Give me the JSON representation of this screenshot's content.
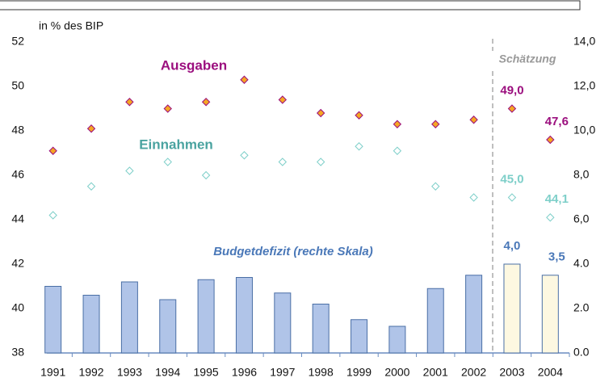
{
  "chart_data": {
    "type": "combo",
    "y_label": "in % des BIP",
    "annotation": "Schätzung",
    "categories": [
      "1991",
      "1992",
      "1993",
      "1994",
      "1995",
      "1996",
      "1997",
      "1998",
      "1999",
      "2000",
      "2001",
      "2002",
      "2003",
      "2004"
    ],
    "series": [
      {
        "name": "Ausgaben",
        "type": "line",
        "color": "#9b0e7e",
        "marker_color": "#f5a623",
        "values": [
          47.1,
          48.1,
          49.3,
          49.0,
          49.3,
          50.3,
          49.4,
          48.8,
          48.7,
          48.3,
          48.3,
          48.5,
          49.0,
          47.6
        ],
        "value_labels": [
          null,
          null,
          null,
          null,
          null,
          null,
          null,
          null,
          null,
          null,
          null,
          null,
          "49,0",
          "47,6"
        ]
      },
      {
        "name": "Einnahmen",
        "type": "line",
        "color": "#7ecfc9",
        "marker_color": "#ffffff",
        "values": [
          44.2,
          45.5,
          46.2,
          46.6,
          46.0,
          46.9,
          46.6,
          46.6,
          47.3,
          47.1,
          45.5,
          45.0,
          45.0,
          44.1
        ],
        "value_labels": [
          null,
          null,
          null,
          null,
          null,
          null,
          null,
          null,
          null,
          null,
          null,
          null,
          "45,0",
          "44,1"
        ]
      },
      {
        "name": "Budgetdefizit (rechte Skala)",
        "type": "bar",
        "axis": "y2",
        "color": "#4a78b8",
        "colors": [
          "#b0c4e8",
          "#b0c4e8",
          "#b0c4e8",
          "#b0c4e8",
          "#b0c4e8",
          "#b0c4e8",
          "#b0c4e8",
          "#b0c4e8",
          "#b0c4e8",
          "#b0c4e8",
          "#b0c4e8",
          "#b0c4e8",
          "#fdf8e1",
          "#fdf8e1"
        ],
        "values": [
          3.0,
          2.6,
          3.2,
          2.4,
          3.3,
          3.4,
          2.7,
          2.2,
          1.5,
          1.2,
          2.9,
          3.5,
          4.0,
          3.5
        ],
        "value_labels": [
          null,
          null,
          null,
          null,
          null,
          null,
          null,
          null,
          null,
          null,
          null,
          null,
          "4,0",
          "3,5"
        ]
      }
    ],
    "ylim": [
      38,
      52
    ],
    "yticks": [
      38,
      40,
      42,
      44,
      46,
      48,
      50,
      52
    ],
    "y2lim": [
      0,
      14
    ],
    "y2ticks": [
      {
        "value": 0,
        "label": "0.0"
      },
      {
        "value": 2,
        "label": "2.0"
      },
      {
        "value": 4,
        "label": "4.0"
      },
      {
        "value": 6,
        "label": "6,0"
      },
      {
        "value": 8,
        "label": "8,0"
      },
      {
        "value": 10,
        "label": "10,0"
      },
      {
        "value": 12,
        "label": "12,0"
      },
      {
        "value": 14,
        "label": "14,0"
      }
    ]
  }
}
